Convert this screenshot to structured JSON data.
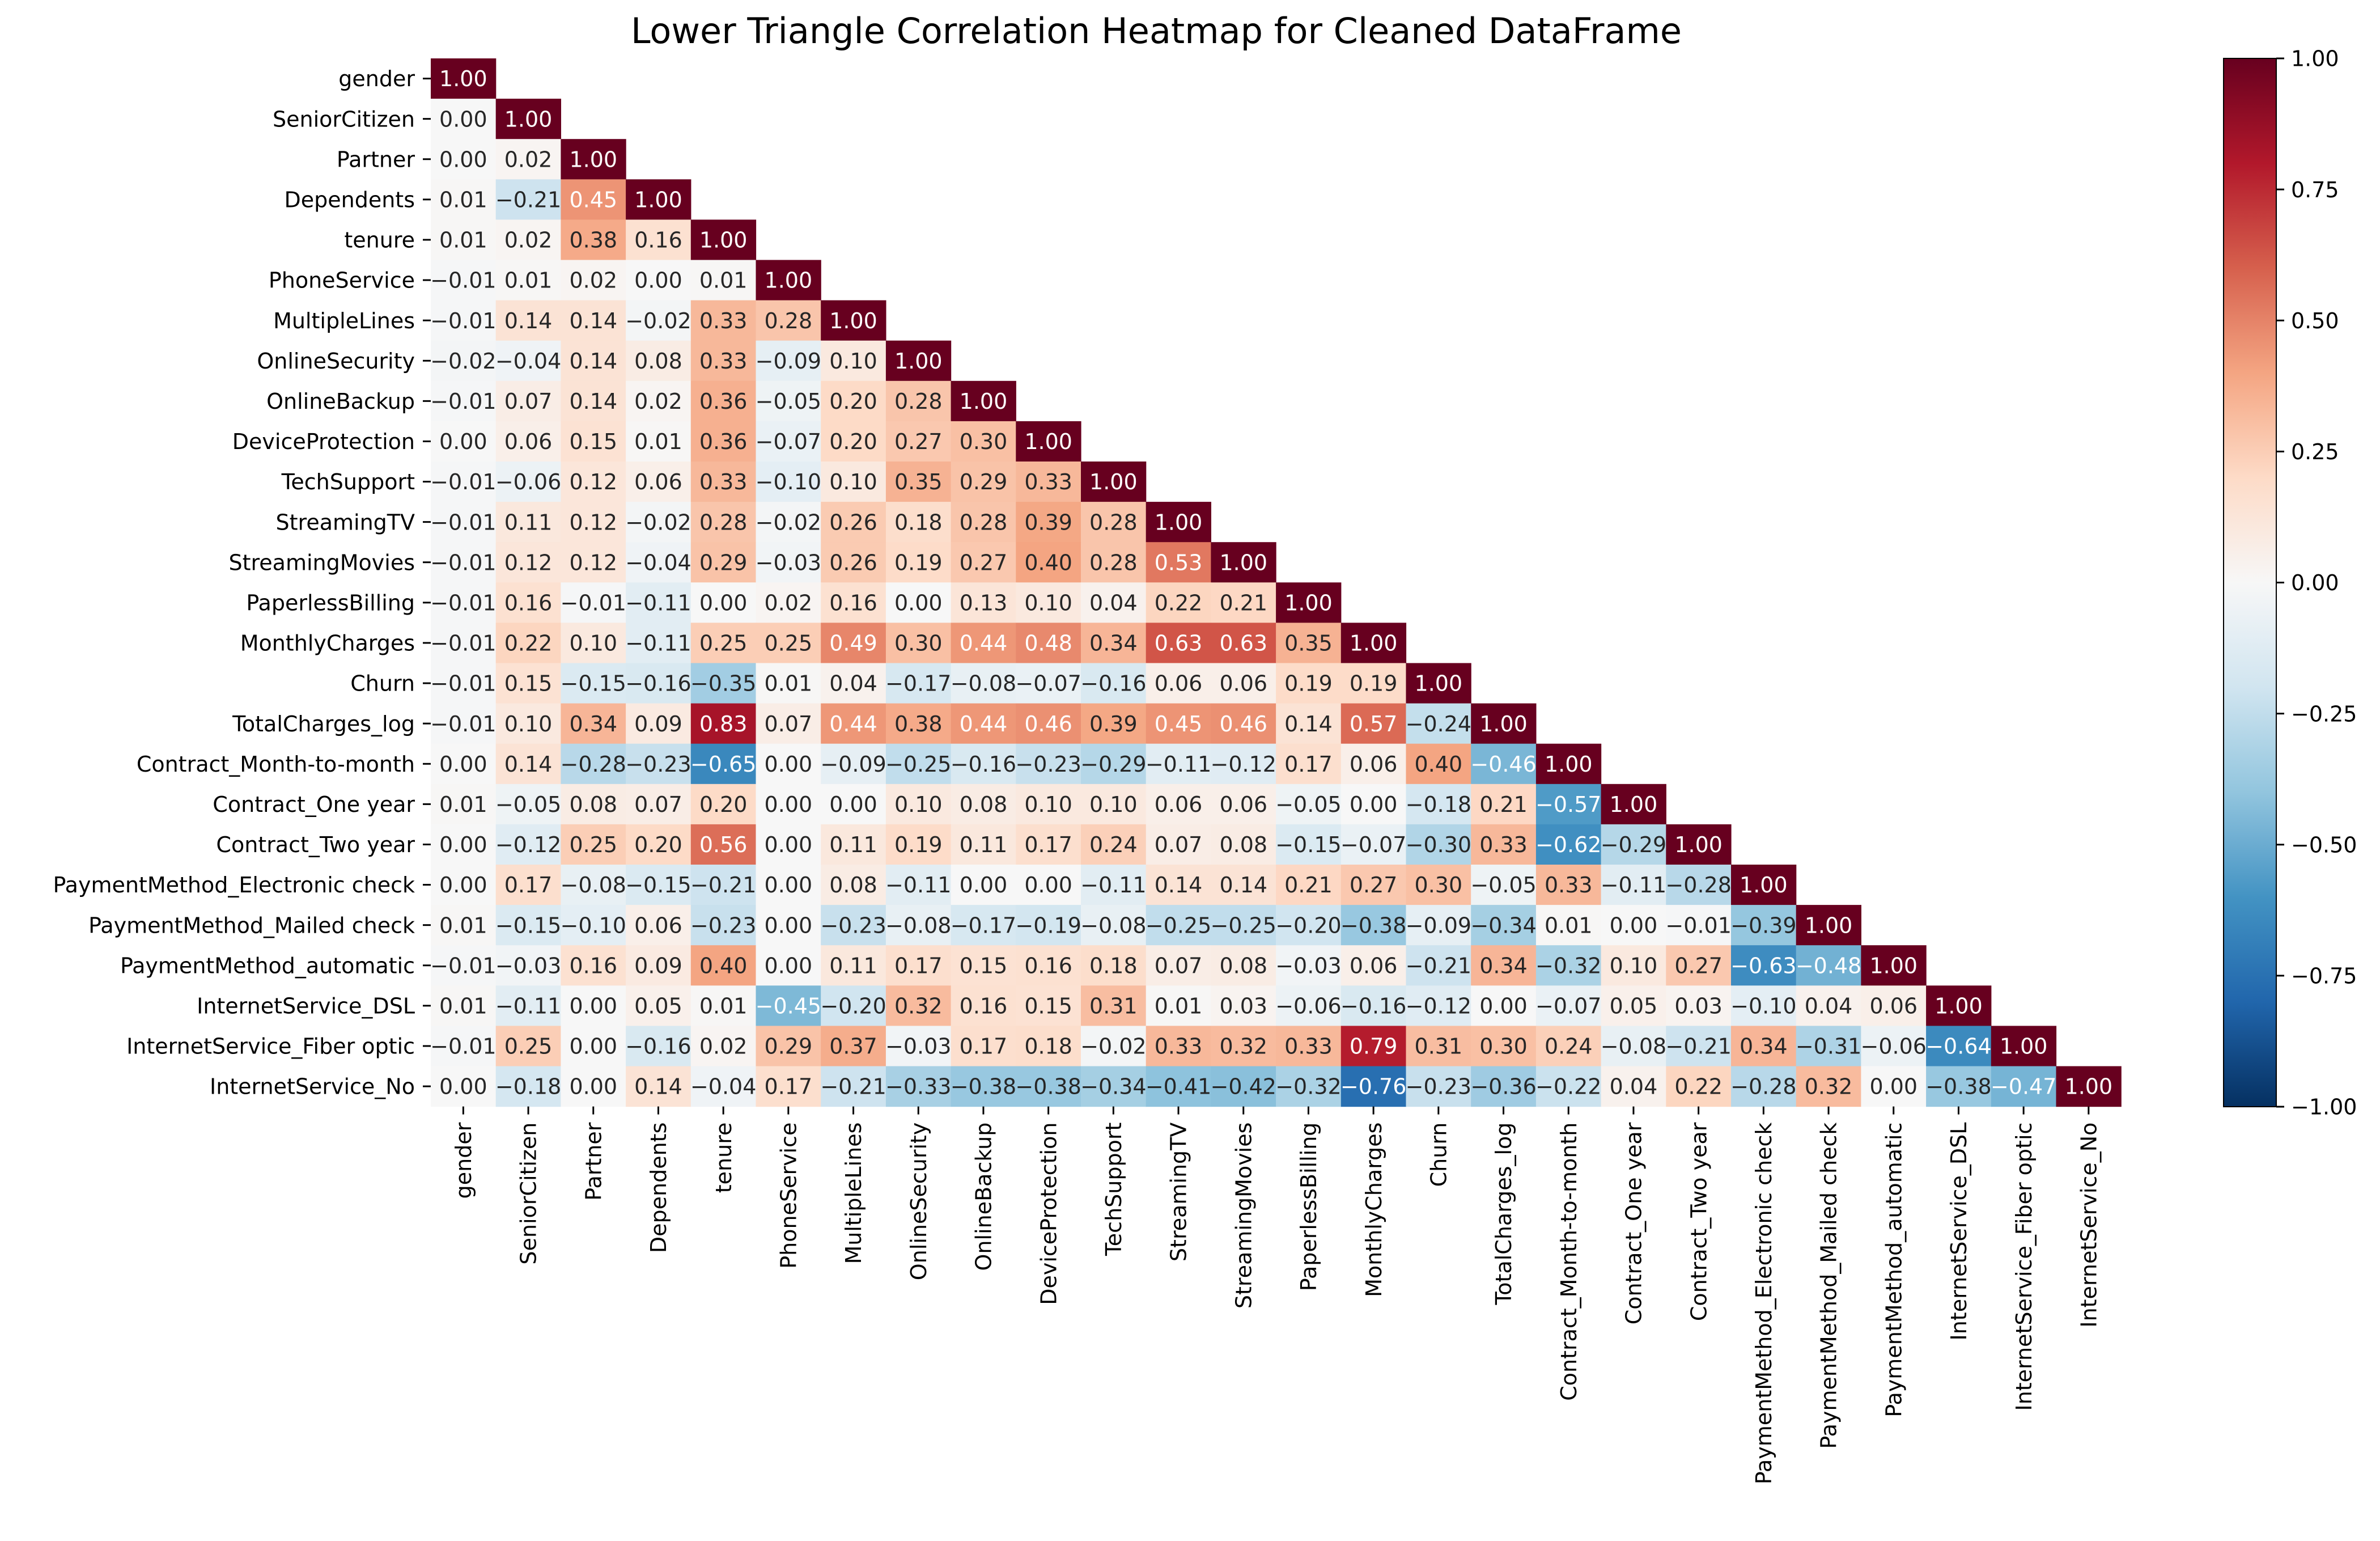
{
  "chart_data": {
    "type": "heatmap",
    "title": "Lower Triangle Correlation Heatmap for Cleaned DataFrame",
    "labels": [
      "gender",
      "SeniorCitizen",
      "Partner",
      "Dependents",
      "tenure",
      "PhoneService",
      "MultipleLines",
      "OnlineSecurity",
      "OnlineBackup",
      "DeviceProtection",
      "TechSupport",
      "StreamingTV",
      "StreamingMovies",
      "PaperlessBilling",
      "MonthlyCharges",
      "Churn",
      "TotalCharges_log",
      "Contract_Month-to-month",
      "Contract_One year",
      "Contract_Two year",
      "PaymentMethod_Electronic check",
      "PaymentMethod_Mailed check",
      "PaymentMethod_automatic",
      "InternetService_DSL",
      "InternetService_Fiber optic",
      "InternetService_No"
    ],
    "matrix": [
      [
        1.0
      ],
      [
        -0.0,
        1.0
      ],
      [
        -0.0,
        0.02,
        1.0
      ],
      [
        0.01,
        -0.21,
        0.45,
        1.0
      ],
      [
        0.01,
        0.02,
        0.38,
        0.16,
        1.0
      ],
      [
        -0.01,
        0.01,
        0.02,
        -0.0,
        0.01,
        1.0
      ],
      [
        -0.01,
        0.14,
        0.14,
        -0.02,
        0.33,
        0.28,
        1.0
      ],
      [
        -0.02,
        -0.04,
        0.14,
        0.08,
        0.33,
        -0.09,
        0.1,
        1.0
      ],
      [
        -0.01,
        0.07,
        0.14,
        0.02,
        0.36,
        -0.05,
        0.2,
        0.28,
        1.0
      ],
      [
        -0.0,
        0.06,
        0.15,
        0.01,
        0.36,
        -0.07,
        0.2,
        0.27,
        0.3,
        1.0
      ],
      [
        -0.01,
        -0.06,
        0.12,
        0.06,
        0.33,
        -0.1,
        0.1,
        0.35,
        0.29,
        0.33,
        1.0
      ],
      [
        -0.01,
        0.11,
        0.12,
        -0.02,
        0.28,
        -0.02,
        0.26,
        0.18,
        0.28,
        0.39,
        0.28,
        1.0
      ],
      [
        -0.01,
        0.12,
        0.12,
        -0.04,
        0.29,
        -0.03,
        0.26,
        0.19,
        0.27,
        0.4,
        0.28,
        0.53,
        1.0
      ],
      [
        -0.01,
        0.16,
        -0.01,
        -0.11,
        0.0,
        0.02,
        0.16,
        -0.0,
        0.13,
        0.1,
        0.04,
        0.22,
        0.21,
        1.0
      ],
      [
        -0.01,
        0.22,
        0.1,
        -0.11,
        0.25,
        0.25,
        0.49,
        0.3,
        0.44,
        0.48,
        0.34,
        0.63,
        0.63,
        0.35,
        1.0
      ],
      [
        -0.01,
        0.15,
        -0.15,
        -0.16,
        -0.35,
        0.01,
        0.04,
        -0.17,
        -0.08,
        -0.07,
        -0.16,
        0.06,
        0.06,
        0.19,
        0.19,
        1.0
      ],
      [
        -0.01,
        0.1,
        0.34,
        0.09,
        0.83,
        0.07,
        0.44,
        0.38,
        0.44,
        0.46,
        0.39,
        0.45,
        0.46,
        0.14,
        0.57,
        -0.24,
        1.0
      ],
      [
        -0.0,
        0.14,
        -0.28,
        -0.23,
        -0.65,
        -0.0,
        -0.09,
        -0.25,
        -0.16,
        -0.23,
        -0.29,
        -0.11,
        -0.12,
        0.17,
        0.06,
        0.4,
        -0.46,
        1.0
      ],
      [
        0.01,
        -0.05,
        0.08,
        0.07,
        0.2,
        -0.0,
        -0.0,
        0.1,
        0.08,
        0.1,
        0.1,
        0.06,
        0.06,
        -0.05,
        0.0,
        -0.18,
        0.21,
        -0.57,
        1.0
      ],
      [
        -0.0,
        -0.12,
        0.25,
        0.2,
        0.56,
        0.0,
        0.11,
        0.19,
        0.11,
        0.17,
        0.24,
        0.07,
        0.08,
        -0.15,
        -0.07,
        -0.3,
        0.33,
        -0.62,
        -0.29,
        1.0
      ],
      [
        0.0,
        0.17,
        -0.08,
        -0.15,
        -0.21,
        0.0,
        0.08,
        -0.11,
        -0.0,
        -0.0,
        -0.11,
        0.14,
        0.14,
        0.21,
        0.27,
        0.3,
        -0.05,
        0.33,
        -0.11,
        -0.28,
        1.0
      ],
      [
        0.01,
        -0.15,
        -0.1,
        0.06,
        -0.23,
        -0.0,
        -0.23,
        -0.08,
        -0.17,
        -0.19,
        -0.08,
        -0.25,
        -0.25,
        -0.2,
        -0.38,
        -0.09,
        -0.34,
        0.01,
        0.0,
        -0.01,
        -0.39,
        1.0
      ],
      [
        -0.01,
        -0.03,
        0.16,
        0.09,
        0.4,
        0.0,
        0.11,
        0.17,
        0.15,
        0.16,
        0.18,
        0.07,
        0.08,
        -0.03,
        0.06,
        -0.21,
        0.34,
        -0.32,
        0.1,
        0.27,
        -0.63,
        -0.48,
        1.0
      ],
      [
        0.01,
        -0.11,
        -0.0,
        0.05,
        0.01,
        -0.45,
        -0.2,
        0.32,
        0.16,
        0.15,
        0.31,
        0.01,
        0.03,
        -0.06,
        -0.16,
        -0.12,
        0.0,
        -0.07,
        0.05,
        0.03,
        -0.1,
        0.04,
        0.06,
        1.0
      ],
      [
        -0.01,
        0.25,
        0.0,
        -0.16,
        0.02,
        0.29,
        0.37,
        -0.03,
        0.17,
        0.18,
        -0.02,
        0.33,
        0.32,
        0.33,
        0.79,
        0.31,
        0.3,
        0.24,
        -0.08,
        -0.21,
        0.34,
        -0.31,
        -0.06,
        -0.64,
        1.0
      ],
      [
        0.0,
        -0.18,
        -0.0,
        0.14,
        -0.04,
        0.17,
        -0.21,
        -0.33,
        -0.38,
        -0.38,
        -0.34,
        -0.41,
        -0.42,
        -0.32,
        -0.76,
        -0.23,
        -0.36,
        -0.22,
        0.04,
        0.22,
        -0.28,
        0.32,
        0.0,
        -0.38,
        -0.47,
        1.0
      ]
    ],
    "vmin": -1.0,
    "vmax": 1.0,
    "colormap": "RdBu_r",
    "colorbar_ticks": [
      "1.00",
      "0.75",
      "0.50",
      "0.25",
      "0.00",
      "−0.25",
      "−0.50",
      "−0.75",
      "−1.00"
    ],
    "colorbar_tick_values": [
      1.0,
      0.75,
      0.5,
      0.25,
      0.0,
      -0.25,
      -0.5,
      -0.75,
      -1.0
    ],
    "value_format": "2 decimals",
    "legend_position": "right",
    "grid": false
  }
}
